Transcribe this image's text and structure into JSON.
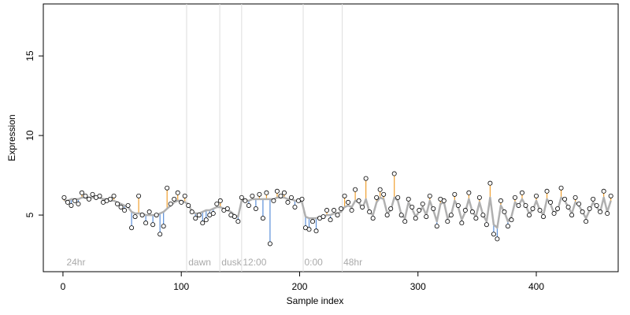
{
  "chart_data": {
    "type": "scatter",
    "xlabel": "Sample index",
    "ylabel": "Expression",
    "xlim": [
      -16.6,
      469.2
    ],
    "ylim": [
      1.44,
      18.27
    ],
    "xticks": [
      0,
      100,
      200,
      300,
      400
    ],
    "yticks": [
      5,
      10,
      15
    ],
    "vlines": [
      104.5,
      132.5,
      151,
      203,
      236
    ],
    "annotations": [
      {
        "x": 3,
        "y": 2,
        "label": "24hr"
      },
      {
        "x": 106,
        "y": 2,
        "label": "dawn"
      },
      {
        "x": 134,
        "y": 2,
        "label": "dusk"
      },
      {
        "x": 152,
        "y": 2,
        "label": "12:00"
      },
      {
        "x": 204,
        "y": 2,
        "label": "0:00"
      },
      {
        "x": 237,
        "y": 2,
        "label": "48hr"
      }
    ],
    "above_color": "#f0a030",
    "below_color": "#5b8fd9",
    "fit_color": "#b0b0b0",
    "point_fill": "#ffffff",
    "vline_color": "#dddddd",
    "x": [
      1,
      4,
      7,
      10,
      13,
      16,
      19,
      22,
      25,
      28,
      31,
      34,
      37,
      40,
      43,
      46,
      49,
      52,
      55,
      58,
      61,
      64,
      67,
      70,
      73,
      76,
      79,
      82,
      85,
      88,
      91,
      94,
      97,
      100,
      103,
      106,
      109,
      112,
      115,
      118,
      121,
      124,
      127,
      130,
      133,
      136,
      139,
      142,
      145,
      148,
      151,
      154,
      157,
      160,
      163,
      166,
      169,
      172,
      175,
      178,
      181,
      184,
      187,
      190,
      193,
      196,
      199,
      202,
      205,
      208,
      211,
      214,
      217,
      220,
      223,
      226,
      229,
      232,
      235,
      238,
      241,
      244,
      247,
      250,
      253,
      256,
      259,
      262,
      265,
      268,
      271,
      274,
      277,
      280,
      283,
      286,
      289,
      292,
      295,
      298,
      301,
      304,
      307,
      310,
      313,
      316,
      319,
      322,
      325,
      328,
      331,
      334,
      337,
      340,
      343,
      346,
      349,
      352,
      355,
      358,
      361,
      364,
      367,
      370,
      373,
      376,
      379,
      382,
      385,
      388,
      391,
      394,
      397,
      400,
      403,
      406,
      409,
      412,
      415,
      418,
      421,
      424,
      427,
      430,
      433,
      436,
      439,
      442,
      445,
      448,
      451,
      454,
      457,
      460,
      463
    ],
    "values": [
      6.1,
      5.8,
      5.6,
      5.9,
      5.7,
      6.4,
      6.2,
      6.0,
      6.3,
      6.1,
      6.2,
      5.8,
      5.9,
      6.0,
      6.2,
      5.7,
      5.5,
      5.3,
      5.6,
      4.2,
      4.9,
      6.2,
      5.0,
      4.5,
      5.2,
      4.4,
      5.0,
      3.8,
      4.3,
      6.7,
      5.7,
      6.0,
      6.4,
      5.8,
      6.2,
      5.6,
      5.2,
      4.8,
      5.0,
      4.5,
      4.7,
      5.0,
      5.1,
      5.7,
      5.9,
      5.3,
      5.4,
      5.0,
      4.9,
      4.6,
      6.1,
      5.9,
      5.6,
      6.2,
      5.4,
      6.3,
      4.8,
      6.4,
      3.2,
      5.9,
      6.5,
      6.2,
      6.4,
      5.8,
      6.1,
      5.5,
      5.9,
      6.0,
      4.2,
      4.1,
      4.6,
      4.0,
      4.8,
      4.9,
      5.3,
      4.7,
      5.3,
      5.0,
      5.4,
      6.2,
      5.8,
      5.3,
      6.6,
      5.9,
      5.5,
      7.3,
      5.2,
      4.8,
      6.1,
      6.6,
      6.3,
      5.0,
      5.4,
      7.6,
      6.1,
      5.0,
      4.6,
      6.0,
      5.5,
      4.8,
      5.3,
      5.7,
      4.9,
      6.2,
      5.4,
      4.3,
      6.0,
      5.9,
      4.6,
      5.0,
      6.3,
      5.6,
      4.5,
      5.3,
      6.4,
      5.2,
      4.8,
      6.1,
      5.0,
      4.4,
      7.0,
      3.8,
      3.5,
      5.9,
      5.2,
      4.3,
      4.7,
      6.1,
      5.6,
      6.4,
      5.6,
      5.0,
      5.4,
      6.2,
      5.3,
      4.9,
      6.5,
      5.8,
      5.1,
      5.4,
      6.7,
      6.0,
      5.5,
      5.0,
      6.1,
      5.7,
      5.2,
      4.6,
      5.4,
      6.0,
      5.6,
      5.2,
      6.5,
      5.1,
      6.2
    ],
    "fit": [
      5.9,
      5.9,
      6.0,
      6.0,
      6.0,
      6.1,
      6.1,
      6.1,
      6.1,
      6.1,
      6.1,
      6.0,
      6.0,
      5.9,
      5.9,
      5.8,
      5.7,
      5.6,
      5.5,
      5.2,
      5.1,
      5.1,
      5.1,
      5.0,
      5.0,
      5.0,
      5.0,
      5.1,
      5.2,
      5.4,
      5.6,
      5.8,
      5.9,
      5.9,
      5.8,
      5.7,
      5.2,
      5.1,
      5.1,
      5.2,
      5.3,
      5.3,
      5.4,
      5.5,
      5.5,
      5.4,
      5.3,
      5.2,
      5.0,
      4.9,
      5.9,
      5.9,
      5.9,
      6.0,
      6.0,
      6.0,
      6.0,
      6.0,
      6.0,
      6.0,
      6.1,
      6.1,
      6.1,
      6.0,
      6.0,
      5.9,
      5.9,
      5.8,
      4.9,
      4.8,
      4.8,
      4.8,
      4.9,
      4.9,
      5.0,
      5.0,
      5.1,
      5.1,
      5.2,
      5.5,
      5.6,
      5.5,
      5.9,
      5.8,
      5.4,
      6.0,
      5.2,
      5.0,
      5.8,
      6.1,
      6.0,
      5.1,
      5.3,
      6.1,
      5.9,
      5.0,
      4.8,
      5.8,
      5.4,
      4.9,
      5.2,
      5.5,
      5.0,
      5.9,
      5.3,
      4.6,
      5.7,
      5.8,
      4.8,
      5.0,
      5.9,
      5.5,
      4.7,
      5.2,
      6.0,
      5.2,
      4.9,
      5.8,
      5.0,
      4.6,
      6.1,
      4.4,
      4.2,
      5.6,
      5.2,
      4.6,
      4.9,
      5.8,
      5.6,
      6.0,
      5.6,
      5.1,
      5.3,
      5.9,
      5.3,
      5.0,
      6.0,
      5.7,
      5.1,
      5.3,
      6.1,
      5.9,
      5.5,
      5.1,
      5.8,
      5.6,
      5.2,
      4.8,
      5.3,
      5.8,
      5.5,
      5.2,
      6.1,
      5.2,
      5.9
    ]
  }
}
